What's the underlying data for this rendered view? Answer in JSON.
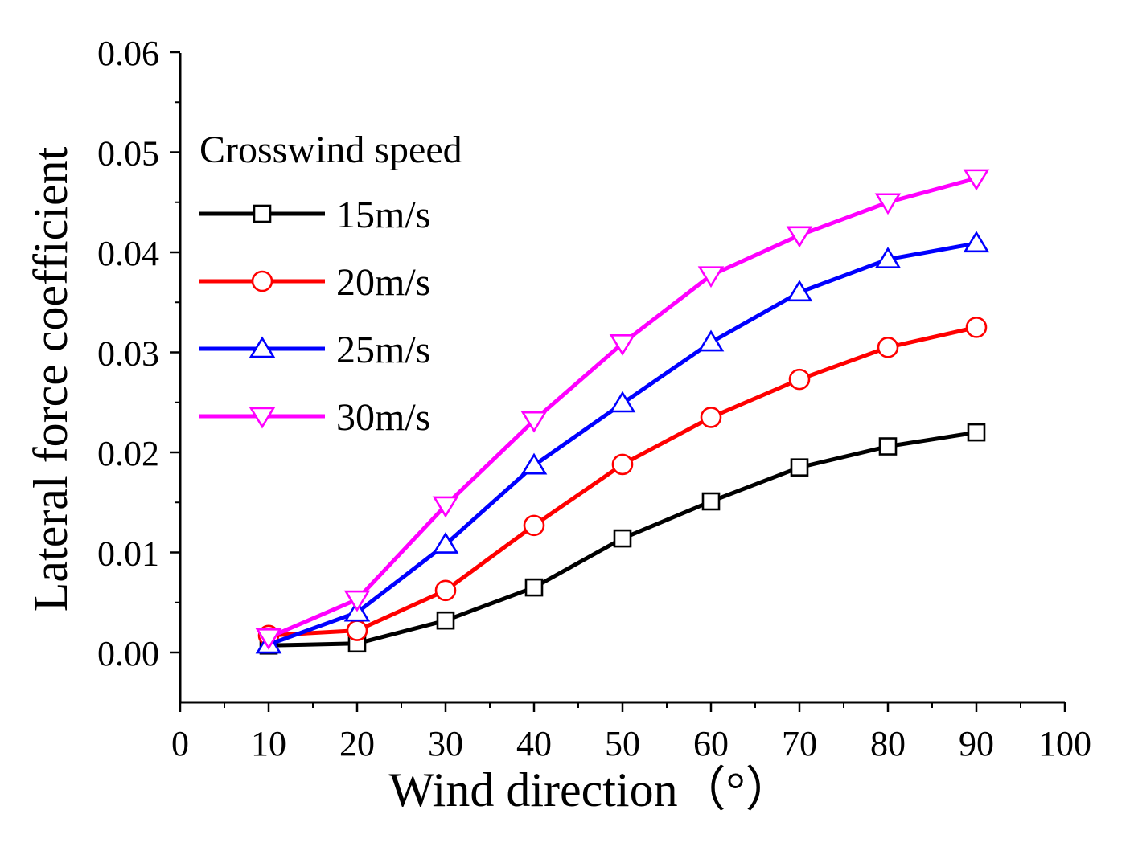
{
  "chart_data": {
    "type": "line",
    "title": "",
    "xlabel": "Wind direction（°）",
    "ylabel": "Lateral force coefficient",
    "xlim": [
      0,
      100
    ],
    "ylim": [
      -0.005,
      0.06
    ],
    "x_ticks": [
      0,
      10,
      20,
      30,
      40,
      50,
      60,
      70,
      80,
      90,
      100
    ],
    "x_tick_labels": [
      "0",
      "10",
      "20",
      "30",
      "40",
      "50",
      "60",
      "70",
      "80",
      "90",
      "100"
    ],
    "y_ticks": [
      0,
      0.01,
      0.02,
      0.03,
      0.04,
      0.05,
      0.06
    ],
    "y_tick_labels": [
      "0.00",
      "0.01",
      "0.02",
      "0.03",
      "0.04",
      "0.05",
      "0.06"
    ],
    "grid": false,
    "legend_title": "Crosswind speed",
    "legend_position": "top-left",
    "x": [
      10,
      20,
      30,
      40,
      50,
      60,
      70,
      80,
      90
    ],
    "series": [
      {
        "name": "15m/s",
        "color": "#000000",
        "marker": "square",
        "values": [
          0.0007,
          0.0009,
          0.0032,
          0.0065,
          0.0114,
          0.0151,
          0.0185,
          0.0206,
          0.022
        ]
      },
      {
        "name": "20m/s",
        "color": "#ff0000",
        "marker": "circle",
        "values": [
          0.0017,
          0.0022,
          0.0062,
          0.0127,
          0.0188,
          0.0235,
          0.0273,
          0.0305,
          0.0325
        ]
      },
      {
        "name": "25m/s",
        "color": "#0000ff",
        "marker": "triangle-up",
        "values": [
          0.0008,
          0.004,
          0.0108,
          0.0187,
          0.0249,
          0.031,
          0.036,
          0.0393,
          0.0409
        ]
      },
      {
        "name": "30m/s",
        "color": "#ff00ff",
        "marker": "triangle-down",
        "values": [
          0.0015,
          0.0053,
          0.0147,
          0.0232,
          0.0309,
          0.0377,
          0.0417,
          0.045,
          0.0474
        ]
      }
    ]
  }
}
